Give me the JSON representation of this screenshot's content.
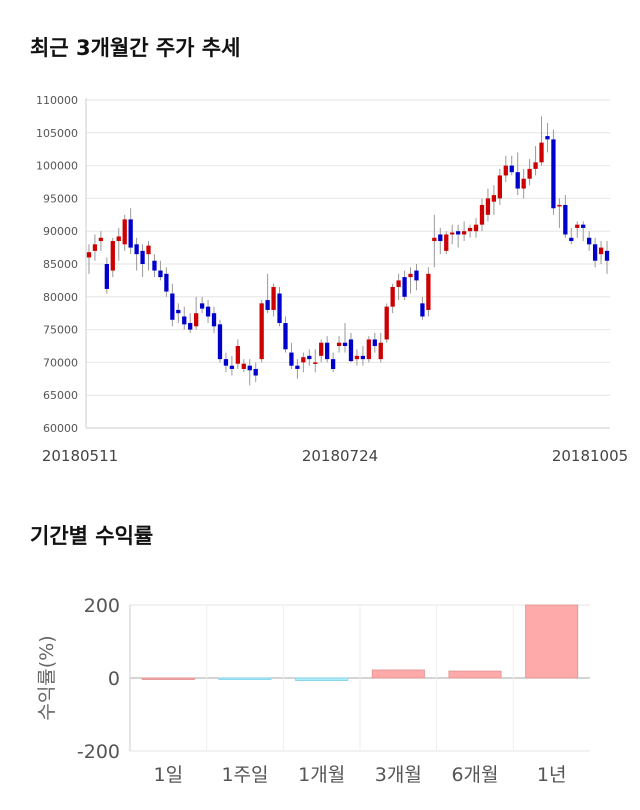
{
  "titles": {
    "price_trend": "최근 3개월간 주가 추세",
    "period_return": "기간별 수익률"
  },
  "chart_data": [
    {
      "type": "candlestick",
      "title": "최근 3개월간 주가 추세",
      "ylim": [
        60000,
        110000
      ],
      "y_ticks": [
        "110000",
        "105000",
        "100000",
        "95000",
        "90000",
        "85000",
        "80000",
        "75000",
        "70000",
        "65000",
        "60000"
      ],
      "x_tick_labels": [
        "20180511",
        "20180724",
        "20181005"
      ],
      "up_color": "#cc0000",
      "down_color": "#0000cc",
      "grid": true,
      "ohlc": [
        [
          86000,
          88000,
          83500,
          86800
        ],
        [
          87000,
          89500,
          85500,
          88000
        ],
        [
          88500,
          90000,
          87000,
          89000
        ],
        [
          85000,
          86000,
          80500,
          81200
        ],
        [
          84000,
          89000,
          83000,
          88500
        ],
        [
          88500,
          90500,
          85500,
          89200
        ],
        [
          88000,
          92500,
          87000,
          91800
        ],
        [
          91800,
          93500,
          86500,
          87500
        ],
        [
          88000,
          89000,
          84000,
          86500
        ],
        [
          87000,
          88000,
          83000,
          85000
        ],
        [
          86500,
          88500,
          84000,
          87800
        ],
        [
          85500,
          86500,
          83000,
          84000
        ],
        [
          84000,
          85500,
          82500,
          83000
        ],
        [
          83500,
          84500,
          80000,
          80800
        ],
        [
          80500,
          82000,
          75500,
          76500
        ],
        [
          78000,
          79000,
          76000,
          77500
        ],
        [
          77000,
          78500,
          75000,
          75800
        ],
        [
          76000,
          77500,
          74500,
          75000
        ],
        [
          75500,
          80000,
          75000,
          77500
        ],
        [
          79000,
          80000,
          77500,
          78200
        ],
        [
          78500,
          79500,
          76000,
          77000
        ],
        [
          77500,
          78500,
          74500,
          75500
        ],
        [
          75800,
          76500,
          70000,
          70500
        ],
        [
          70500,
          71500,
          68500,
          69500
        ],
        [
          69500,
          71000,
          68000,
          69000
        ],
        [
          69800,
          73500,
          69000,
          72500
        ],
        [
          69000,
          70500,
          68500,
          69800
        ],
        [
          69500,
          70500,
          66500,
          68800
        ],
        [
          69000,
          70000,
          67000,
          68000
        ],
        [
          70500,
          79500,
          70000,
          79000
        ],
        [
          79500,
          83500,
          77500,
          78000
        ],
        [
          78000,
          82000,
          77000,
          81500
        ],
        [
          80500,
          81500,
          75500,
          76000
        ],
        [
          76000,
          77000,
          71500,
          72000
        ],
        [
          71500,
          73000,
          69000,
          69500
        ],
        [
          69500,
          70500,
          67500,
          69000
        ],
        [
          70000,
          71500,
          68500,
          70800
        ],
        [
          71000,
          72000,
          69500,
          70500
        ],
        [
          70000,
          72000,
          68500,
          70000
        ],
        [
          71000,
          73500,
          70000,
          73000
        ],
        [
          73000,
          74000,
          70000,
          70500
        ],
        [
          70500,
          71500,
          68500,
          69000
        ],
        [
          72500,
          74000,
          71500,
          73000
        ],
        [
          73000,
          76000,
          71500,
          72500
        ],
        [
          73500,
          74500,
          70000,
          70200
        ],
        [
          70500,
          72000,
          69500,
          71000
        ],
        [
          71000,
          72500,
          69500,
          70500
        ],
        [
          70500,
          74000,
          70000,
          73500
        ],
        [
          73500,
          74500,
          71500,
          72500
        ],
        [
          70500,
          74500,
          70000,
          73000
        ],
        [
          73500,
          79000,
          73000,
          78500
        ],
        [
          78500,
          82000,
          77500,
          81500
        ],
        [
          81500,
          83500,
          79500,
          82500
        ],
        [
          83000,
          84000,
          79500,
          80000
        ],
        [
          83000,
          84500,
          80500,
          83500
        ],
        [
          84000,
          85000,
          81000,
          82500
        ],
        [
          79000,
          80000,
          76500,
          77000
        ],
        [
          78000,
          84500,
          77000,
          83500
        ],
        [
          88500,
          92500,
          84500,
          89000
        ],
        [
          89500,
          90500,
          86500,
          88500
        ],
        [
          87000,
          90000,
          86500,
          89500
        ],
        [
          89500,
          91000,
          88000,
          89800
        ],
        [
          90000,
          91000,
          87500,
          89500
        ],
        [
          89500,
          91500,
          88500,
          90000
        ],
        [
          90000,
          91000,
          89000,
          90500
        ],
        [
          90000,
          92000,
          89000,
          91000
        ],
        [
          91000,
          95000,
          90000,
          94000
        ],
        [
          92500,
          96500,
          91500,
          95000
        ],
        [
          94500,
          97000,
          92500,
          95500
        ],
        [
          95000,
          99500,
          94000,
          98500
        ],
        [
          98500,
          101500,
          97500,
          100000
        ],
        [
          100000,
          101500,
          98500,
          99000
        ],
        [
          99000,
          102000,
          95500,
          96500
        ],
        [
          96500,
          99500,
          95000,
          98000
        ],
        [
          98000,
          101000,
          97000,
          99500
        ],
        [
          99500,
          103000,
          98500,
          100500
        ],
        [
          100500,
          107500,
          100000,
          103500
        ],
        [
          104500,
          106500,
          102000,
          104000
        ],
        [
          104000,
          105500,
          92500,
          93500
        ],
        [
          94000,
          95000,
          90500,
          94000
        ],
        [
          94000,
          95500,
          89000,
          89500
        ],
        [
          89000,
          90500,
          88000,
          88500
        ],
        [
          90500,
          91500,
          89000,
          91000
        ],
        [
          91000,
          91500,
          88500,
          90500
        ],
        [
          89000,
          90000,
          87000,
          88000
        ],
        [
          88000,
          89000,
          84500,
          85500
        ],
        [
          86500,
          88500,
          85000,
          87500
        ],
        [
          87000,
          88500,
          83500,
          85500
        ]
      ]
    },
    {
      "type": "bar",
      "title": "기간별 수익률",
      "categories": [
        "1일",
        "1주일",
        "1개월",
        "3개월",
        "6개월",
        "1년"
      ],
      "values": [
        0,
        -1,
        -7,
        22,
        19,
        200
      ],
      "ylabel": "수익률(%)",
      "ylim": [
        -200,
        200
      ],
      "y_ticks": [
        "200",
        "0",
        "-200"
      ],
      "positive_color": "#ffaaaa",
      "negative_color": "#aaeeff"
    }
  ]
}
